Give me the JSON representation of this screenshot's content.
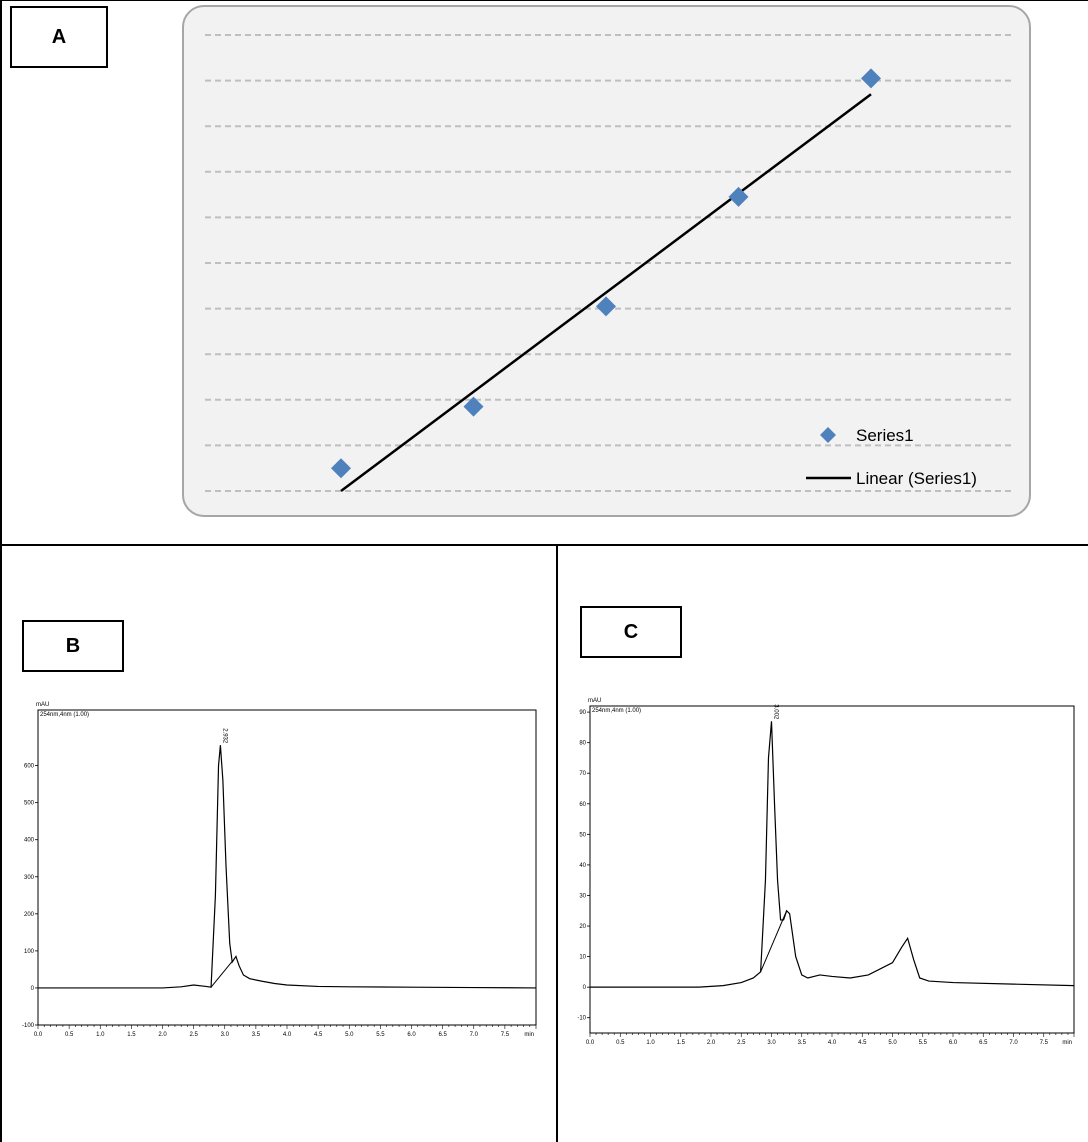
{
  "panels": {
    "a_label": "A",
    "b_label": "B",
    "c_label": "C"
  },
  "chart_data": [
    {
      "type": "scatter",
      "id": "A",
      "series": [
        {
          "name": "Series1",
          "x": [
            1,
            2,
            3,
            4,
            5
          ],
          "y": [
            0.5,
            1.85,
            4.05,
            6.45,
            9.05
          ],
          "color": "#4f81bd"
        }
      ],
      "trendline": {
        "name": "Linear (Series1)",
        "type": "linear",
        "x": [
          1,
          5
        ],
        "y": [
          0.0,
          8.7
        ],
        "color": "#000000"
      },
      "ylim": [
        0,
        10
      ],
      "gridline_count": 10,
      "grid": true,
      "legend_position": "bottom-right"
    },
    {
      "type": "line",
      "id": "B",
      "ylabel": "mAU",
      "channel": "254nm,4nm (1.00)",
      "xlabel": "min",
      "xlim": [
        0,
        8
      ],
      "ylim": [
        -100,
        750
      ],
      "yticks": [
        -100,
        0,
        100,
        200,
        300,
        400,
        500,
        600
      ],
      "xticks": [
        0.0,
        0.5,
        1.0,
        1.5,
        2.0,
        2.5,
        3.0,
        3.5,
        4.0,
        4.5,
        5.0,
        5.5,
        6.0,
        6.5,
        7.0,
        7.5
      ],
      "peak_label": "2.932",
      "trace": {
        "x": [
          0,
          2.0,
          2.3,
          2.5,
          2.7,
          2.78,
          2.85,
          2.9,
          2.93,
          2.97,
          3.02,
          3.08,
          3.12,
          3.18,
          3.23,
          3.3,
          3.4,
          3.6,
          3.8,
          4.0,
          4.5,
          5.0,
          6.0,
          7.0,
          8.0
        ],
        "y": [
          0,
          0,
          3,
          8,
          4,
          2,
          250,
          600,
          655,
          560,
          330,
          120,
          70,
          85,
          60,
          35,
          25,
          18,
          12,
          8,
          4,
          3,
          2,
          1,
          0
        ]
      },
      "baseline_segment": {
        "x": [
          2.78,
          3.12
        ],
        "y": [
          2,
          72
        ]
      }
    },
    {
      "type": "line",
      "id": "C",
      "ylabel": "mAU",
      "channel": "254nm,4nm (1.00)",
      "xlabel": "min",
      "xlim": [
        0,
        8
      ],
      "ylim": [
        -15,
        92
      ],
      "yticks": [
        -10,
        0,
        10,
        20,
        30,
        40,
        50,
        60,
        70,
        80,
        90
      ],
      "xticks": [
        0.0,
        0.5,
        1.0,
        1.5,
        2.0,
        2.5,
        3.0,
        3.5,
        4.0,
        4.5,
        5.0,
        5.5,
        6.0,
        6.5,
        7.0,
        7.5
      ],
      "peak_label": "3.002",
      "trace": {
        "x": [
          0,
          1.8,
          2.2,
          2.5,
          2.7,
          2.82,
          2.9,
          2.95,
          3.0,
          3.05,
          3.1,
          3.15,
          3.2,
          3.25,
          3.3,
          3.4,
          3.5,
          3.6,
          3.8,
          4.0,
          4.3,
          4.6,
          5.0,
          5.15,
          5.25,
          5.35,
          5.45,
          5.6,
          6.0,
          7.0,
          8.0
        ],
        "y": [
          0,
          0,
          0.5,
          1.5,
          3,
          5,
          35,
          75,
          87,
          60,
          35,
          22,
          22,
          25,
          24,
          10,
          4,
          3,
          4,
          3.5,
          3,
          4,
          8,
          13,
          16,
          9,
          3,
          2,
          1.5,
          1,
          0.5
        ]
      },
      "baseline_segment": {
        "x": [
          2.82,
          3.25
        ],
        "y": [
          5,
          25
        ]
      }
    }
  ]
}
